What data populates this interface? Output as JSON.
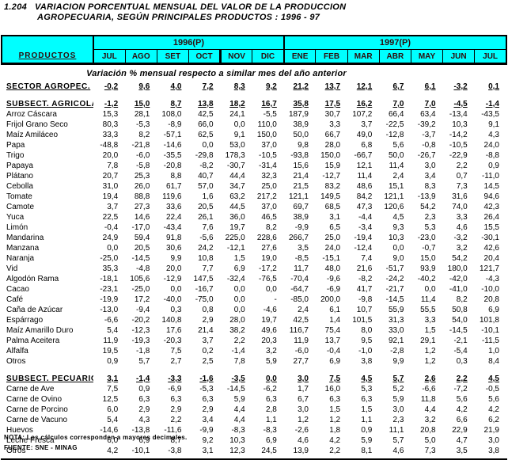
{
  "title": {
    "index": "1.204",
    "line1": "VARIACION PORCENTUAL MENSUAL DEL VALOR DE LA PRODUCCION",
    "line2": "AGROPECUARIA, SEGÚN PRINCIPALES PRODUCTOS : 1996 - 97"
  },
  "subtitle": "Variación % mensual respecto a similar mes del año anterior",
  "colors": {
    "header_bg": "#00ffff",
    "header_text": "#2e0d0d",
    "border": "#000000"
  },
  "table": {
    "products_header": "PRODUCTOS",
    "year_groups": [
      {
        "label": "1996(P)",
        "months": [
          "JUL",
          "AGO",
          "SET",
          "OCT",
          "NOV",
          "DIC"
        ]
      },
      {
        "label": "1997(P)",
        "months": [
          "ENE",
          "FEB",
          "MAR",
          "ABR",
          "MAY",
          "JUN",
          "JUL"
        ]
      }
    ],
    "rows": [
      {
        "label": "SECTOR AGROPEC.",
        "section": true,
        "values": [
          "-0,2",
          "9,6",
          "4,0",
          "7,2",
          "8,3",
          "9,2",
          "21,2",
          "13,7",
          "12,1",
          "6,7",
          "6,1",
          "-3,2",
          "0,1"
        ]
      },
      {
        "label": "SUBSECT. AGRICOLA",
        "section": true,
        "gap_before": true,
        "values": [
          "-1,2",
          "15,0",
          "8,7",
          "13,8",
          "18,2",
          "16,7",
          "35,8",
          "17,5",
          "16,2",
          "7,0",
          "7,0",
          "-4,5",
          "-1,4"
        ]
      },
      {
        "label": "Arroz Cáscara",
        "values": [
          "15,3",
          "28,1",
          "108,0",
          "42,5",
          "24,1",
          "-5,5",
          "187,9",
          "30,7",
          "107,2",
          "66,4",
          "63,4",
          "-13,4",
          "-43,5"
        ]
      },
      {
        "label": "Frijol Grano Seco",
        "values": [
          "80,3",
          "-5,3",
          "-8,9",
          "66,0",
          "0,0",
          "110,0",
          "38,9",
          "3,3",
          "3,7",
          "-22,5",
          "-39,2",
          "10,3",
          "9,1"
        ]
      },
      {
        "label": "Maíz Amiláceo",
        "values": [
          "33,3",
          "8,2",
          "-57,1",
          "62,5",
          "9,1",
          "150,0",
          "50,0",
          "66,7",
          "49,0",
          "-12,8",
          "-3,7",
          "-14,2",
          "4,3"
        ]
      },
      {
        "label": "Papa",
        "values": [
          "-48,8",
          "-21,8",
          "-14,6",
          "0,0",
          "53,0",
          "37,0",
          "9,8",
          "28,0",
          "6,8",
          "5,6",
          "-0,8",
          "-10,5",
          "24,0"
        ]
      },
      {
        "label": "Trigo",
        "values": [
          "20,0",
          "-6,0",
          "-35,5",
          "-29,8",
          "178,3",
          "-10,5",
          "-93,8",
          "150,0",
          "-66,7",
          "50,0",
          "-26,7",
          "-22,9",
          "-8,8"
        ]
      },
      {
        "label": "Papaya",
        "values": [
          "7,8",
          "-5,8",
          "-20,8",
          "-8,2",
          "-30,7",
          "-31,4",
          "15,6",
          "15,9",
          "12,1",
          "11,4",
          "3,0",
          "2,2",
          "0,9"
        ]
      },
      {
        "label": "Plátano",
        "values": [
          "20,7",
          "25,3",
          "8,8",
          "40,7",
          "44,4",
          "32,3",
          "21,4",
          "-12,7",
          "11,4",
          "2,4",
          "3,4",
          "0,7",
          "-11,0"
        ]
      },
      {
        "label": "Cebolla",
        "values": [
          "31,0",
          "26,0",
          "61,7",
          "57,0",
          "34,7",
          "25,0",
          "21,5",
          "83,2",
          "48,6",
          "15,1",
          "8,3",
          "7,3",
          "14,5"
        ]
      },
      {
        "label": "Tomate",
        "values": [
          "19,4",
          "88,8",
          "119,6",
          "1,6",
          "63,2",
          "217,2",
          "121,1",
          "149,5",
          "84,2",
          "121,1",
          "-13,9",
          "31,6",
          "94,6"
        ]
      },
      {
        "label": "Camote",
        "values": [
          "3,7",
          "27,3",
          "33,6",
          "20,5",
          "44,5",
          "37,0",
          "69,7",
          "68,5",
          "47,3",
          "120,6",
          "54,2",
          "74,0",
          "42,3"
        ]
      },
      {
        "label": "Yuca",
        "values": [
          "22,5",
          "14,6",
          "22,4",
          "26,1",
          "36,0",
          "46,5",
          "38,9",
          "3,1",
          "-4,4",
          "4,5",
          "2,3",
          "3,3",
          "26,4"
        ]
      },
      {
        "label": "Limón",
        "values": [
          "-0,4",
          "-17,0",
          "-43,4",
          "7,6",
          "19,7",
          "8,2",
          "-9,9",
          "6,5",
          "-3,4",
          "9,3",
          "5,3",
          "4,6",
          "15,5"
        ]
      },
      {
        "label": "Mandarina",
        "values": [
          "24,9",
          "59,4",
          "91,8",
          "-5,6",
          "225,0",
          "228,6",
          "266,7",
          "25,0",
          "-19,4",
          "10,3",
          "-23,0",
          "-3,2",
          "-30,1"
        ]
      },
      {
        "label": "Manzana",
        "values": [
          "0,0",
          "20,5",
          "30,6",
          "24,2",
          "-12,1",
          "27,6",
          "3,5",
          "24,0",
          "-12,4",
          "0,0",
          "-0,7",
          "3,2",
          "42,6"
        ]
      },
      {
        "label": "Naranja",
        "values": [
          "-25,0",
          "-14,5",
          "9,9",
          "10,8",
          "1,5",
          "19,0",
          "-8,5",
          "-15,1",
          "7,4",
          "9,0",
          "15,0",
          "54,2",
          "20,4"
        ]
      },
      {
        "label": "Vid",
        "values": [
          "35,3",
          "-4,8",
          "20,0",
          "7,7",
          "6,9",
          "-17,2",
          "11,7",
          "48,0",
          "21,6",
          "-51,7",
          "93,9",
          "180,0",
          "121,7"
        ]
      },
      {
        "label": "Algodón Rama",
        "values": [
          "-18,1",
          "105,6",
          "-12,9",
          "147,5",
          "-32,4",
          "-76,5",
          "-70,4",
          "-9,6",
          "-8,2",
          "-24,2",
          "-40,2",
          "-42,0",
          "-4,3"
        ]
      },
      {
        "label": "Cacao",
        "values": [
          "-23,1",
          "-25,0",
          "0,0",
          "-16,7",
          "0,0",
          "0,0",
          "-64,7",
          "-6,9",
          "41,7",
          "-21,7",
          "0,0",
          "-41,0",
          "-10,0"
        ]
      },
      {
        "label": "Café",
        "values": [
          "-19,9",
          "17,2",
          "-40,0",
          "-75,0",
          "0,0",
          "-",
          "-85,0",
          "200,0",
          "-9,8",
          "-14,5",
          "11,4",
          "8,2",
          "20,8"
        ]
      },
      {
        "label": "Caña de Azúcar",
        "values": [
          "-13,0",
          "-9,4",
          "0,3",
          "0,8",
          "0,0",
          "-4,6",
          "2,4",
          "6,1",
          "10,7",
          "55,9",
          "55,5",
          "50,8",
          "6,9"
        ]
      },
      {
        "label": "Espárrago",
        "values": [
          "-6,6",
          "-20,2",
          "140,8",
          "2,9",
          "28,0",
          "19,7",
          "42,5",
          "1,4",
          "101,5",
          "31,3",
          "3,3",
          "54,0",
          "101,8"
        ]
      },
      {
        "label": "Maíz Amarillo Duro",
        "values": [
          "5,4",
          "-12,3",
          "17,6",
          "21,4",
          "38,2",
          "49,6",
          "116,7",
          "75,4",
          "8,0",
          "33,0",
          "1,5",
          "-14,5",
          "-10,1"
        ]
      },
      {
        "label": "Palma Aceitera",
        "values": [
          "11,9",
          "-19,3",
          "-20,3",
          "3,7",
          "2,2",
          "20,3",
          "11,9",
          "13,7",
          "9,5",
          "92,1",
          "29,1",
          "-2,1",
          "-11,5"
        ]
      },
      {
        "label": "Alfalfa",
        "values": [
          "19,5",
          "-1,8",
          "7,5",
          "0,2",
          "-1,4",
          "3,2",
          "-6,0",
          "-0,4",
          "-1,0",
          "-2,8",
          "1,2",
          "-5,4",
          "1,0"
        ]
      },
      {
        "label": "Otros",
        "values": [
          "0,9",
          "5,7",
          "2,7",
          "2,5",
          "7,8",
          "5,9",
          "27,7",
          "6,9",
          "3,8",
          "9,9",
          "1,2",
          "0,3",
          "8,4"
        ]
      },
      {
        "label": "SUBSECT. PECUARIO",
        "section": true,
        "gap_before": true,
        "values": [
          "3,1",
          "-1,4",
          "-3,3",
          "-1,6",
          "-3,5",
          "0,0",
          "3,0",
          "7,5",
          "4,5",
          "5,7",
          "2,6",
          "2,2",
          "4,5"
        ]
      },
      {
        "label": "Carne de Ave",
        "values": [
          "7,5",
          "0,9",
          "-6,9",
          "-5,3",
          "-14,5",
          "-6,2",
          "1,7",
          "16,0",
          "5,3",
          "5,2",
          "-6,6",
          "-7,2",
          "-0,5"
        ]
      },
      {
        "label": "Carne de Ovino",
        "values": [
          "12,5",
          "6,3",
          "6,3",
          "6,3",
          "5,9",
          "6,3",
          "6,7",
          "6,3",
          "6,3",
          "5,9",
          "11,8",
          "5,6",
          "5,6"
        ]
      },
      {
        "label": "Carne de Porcino",
        "values": [
          "6,0",
          "2,9",
          "2,9",
          "2,9",
          "4,4",
          "2,8",
          "3,0",
          "1,5",
          "1,5",
          "3,0",
          "4,4",
          "4,2",
          "4,2"
        ]
      },
      {
        "label": "Carne de Vacuno",
        "values": [
          "5,4",
          "4,3",
          "2,2",
          "3,4",
          "4,4",
          "1,1",
          "1,2",
          "1,2",
          "1,1",
          "2,3",
          "3,2",
          "6,6",
          "6,2"
        ]
      },
      {
        "label": "Huevos",
        "values": [
          "-14,6",
          "-13,8",
          "-11,6",
          "-9,9",
          "-8,3",
          "-8,3",
          "-2,6",
          "1,8",
          "0,9",
          "11,1",
          "20,8",
          "22,9",
          "21,9"
        ]
      },
      {
        "label": "Leche Fresca",
        "values": [
          "6,0",
          "6,9",
          "8,7",
          "9,2",
          "10,3",
          "6,9",
          "4,6",
          "4,2",
          "5,9",
          "5,7",
          "5,0",
          "4,7",
          "3,0"
        ]
      },
      {
        "label": "Otros",
        "values": [
          "4,2",
          "-10,1",
          "-3,8",
          "3,1",
          "12,3",
          "24,5",
          "13,9",
          "2,2",
          "8,1",
          "4,6",
          "7,3",
          "3,5",
          "3,8"
        ]
      }
    ]
  },
  "footer": {
    "nota": "NOTA: Los cálculos corresponden a mayores decimales.",
    "fuente": "FUENTE: SNE - MINAG"
  }
}
